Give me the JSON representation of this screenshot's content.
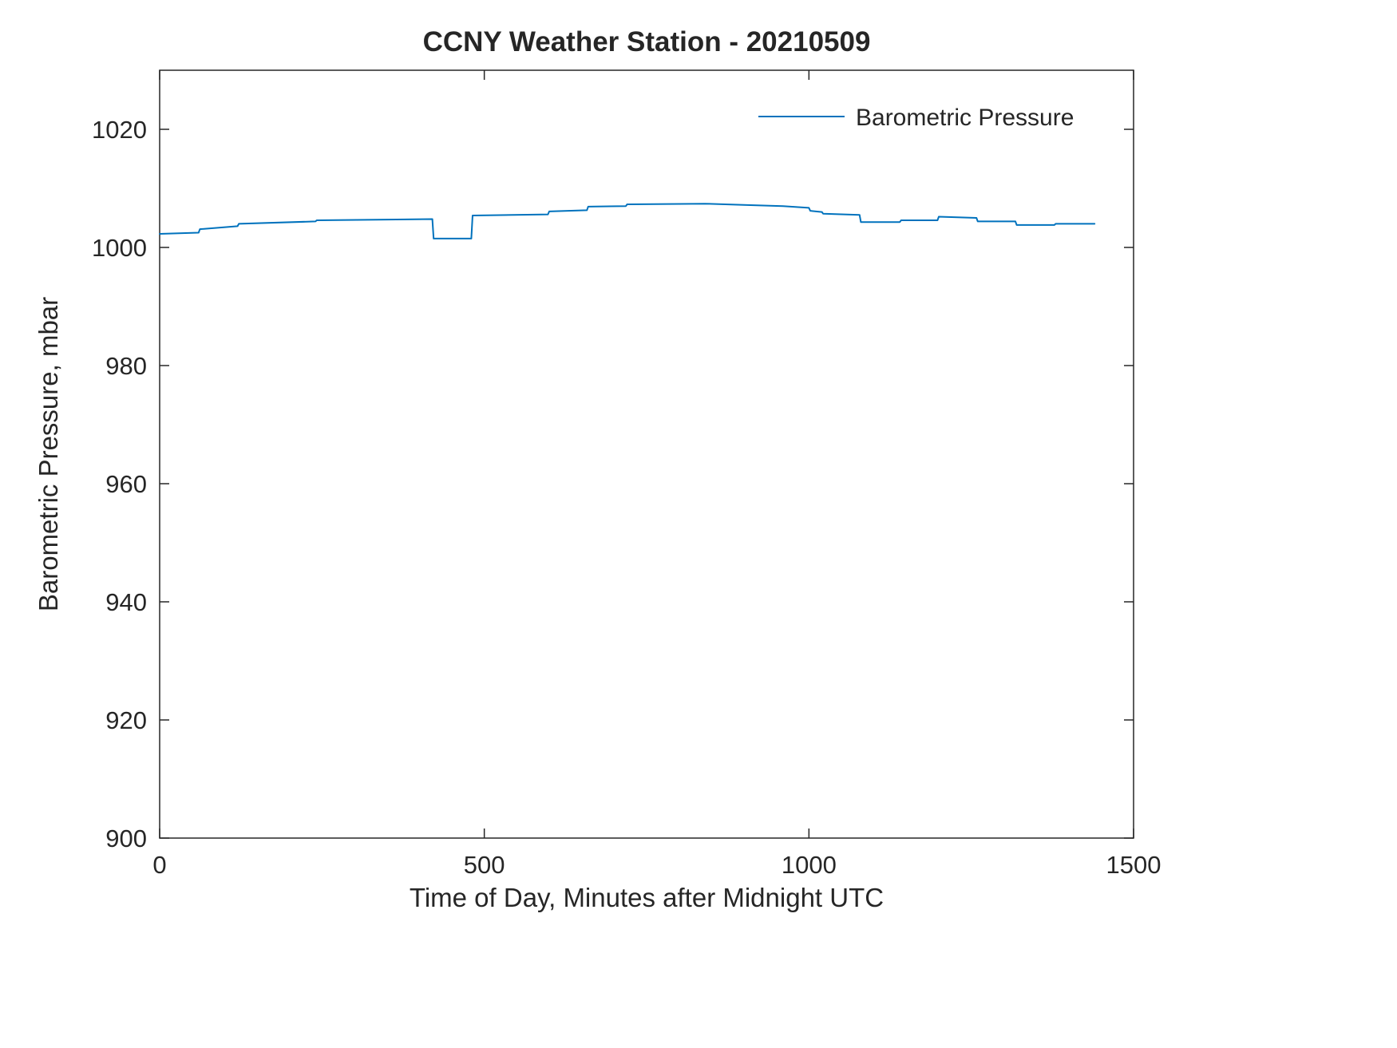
{
  "title": "CCNY Weather Station - 20210509",
  "chart_data": {
    "type": "line",
    "title": "CCNY Weather Station - 20210509",
    "xlabel": "Time of Day, Minutes after Midnight UTC",
    "ylabel": "Barometric Pressure, mbar",
    "xlim": [
      0,
      1500
    ],
    "ylim": [
      900,
      1030
    ],
    "xticks": [
      0,
      500,
      1000,
      1500
    ],
    "yticks": [
      900,
      920,
      940,
      960,
      980,
      1000,
      1020
    ],
    "grid": false,
    "legend": {
      "position": "top-right",
      "entries": [
        "Barometric Pressure"
      ]
    },
    "line_color": "#0072BD",
    "axis_color": "#262626",
    "series": [
      {
        "name": "Barometric Pressure",
        "x": [
          0,
          60,
          62,
          120,
          122,
          240,
          242,
          420,
          422,
          480,
          482,
          598,
          600,
          658,
          660,
          718,
          720,
          840,
          900,
          960,
          1000,
          1002,
          1020,
          1022,
          1078,
          1080,
          1140,
          1142,
          1198,
          1200,
          1258,
          1260,
          1318,
          1320,
          1378,
          1380,
          1440
        ],
        "y": [
          1002.3,
          1002.5,
          1003.1,
          1003.6,
          1004.0,
          1004.4,
          1004.6,
          1004.8,
          1001.5,
          1001.5,
          1005.4,
          1005.6,
          1006.1,
          1006.3,
          1006.9,
          1007.0,
          1007.3,
          1007.4,
          1007.2,
          1007.0,
          1006.7,
          1006.2,
          1006.0,
          1005.7,
          1005.5,
          1004.3,
          1004.3,
          1004.6,
          1004.6,
          1005.2,
          1005.0,
          1004.4,
          1004.4,
          1003.8,
          1003.8,
          1004.0,
          1004.0
        ]
      }
    ]
  }
}
